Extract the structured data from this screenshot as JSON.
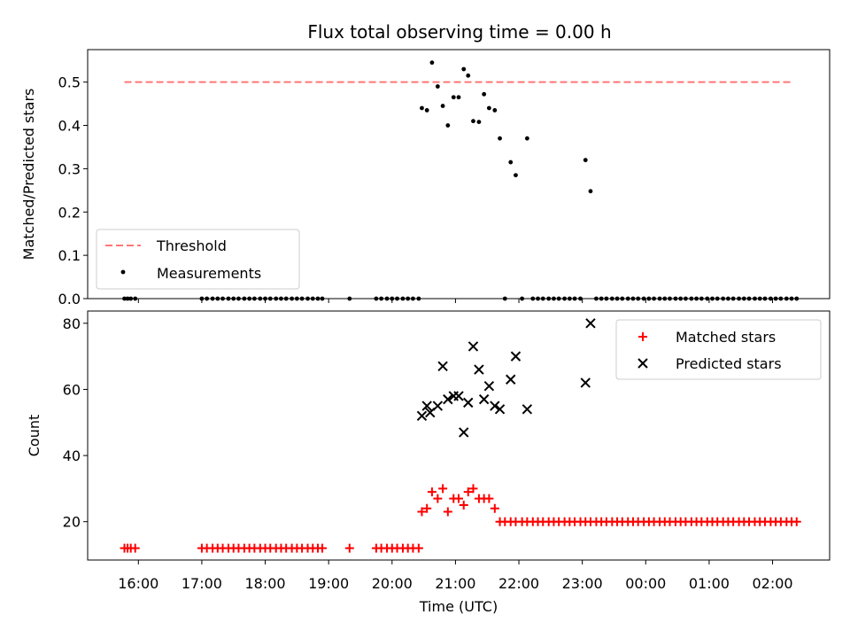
{
  "title": "Flux total observing time = 0.00 h",
  "chart_data": [
    {
      "type": "scatter",
      "ylabel": "Matched/Predicted stars",
      "ylim": [
        0,
        0.575
      ],
      "yticks": [
        0.0,
        0.1,
        0.2,
        0.3,
        0.4,
        0.5
      ],
      "grid": false,
      "legend_position": "lower-left",
      "threshold": {
        "name": "Threshold",
        "value": 0.5,
        "x_start": 15.78,
        "x_end": 26.33,
        "color": "#ff7777"
      },
      "series": [
        {
          "name": "Measurements",
          "color": "#000000",
          "x": [
            15.78,
            15.83,
            15.88,
            15.95,
            17.0,
            17.08,
            17.17,
            17.25,
            17.33,
            17.42,
            17.5,
            17.58,
            17.67,
            17.75,
            17.83,
            17.92,
            18.0,
            18.08,
            18.17,
            18.25,
            18.33,
            18.42,
            18.5,
            18.58,
            18.67,
            18.75,
            18.83,
            18.9,
            19.33,
            19.75,
            19.83,
            19.92,
            20.0,
            20.08,
            20.17,
            20.25,
            20.33,
            20.42,
            20.47,
            20.55,
            20.63,
            20.72,
            20.8,
            20.88,
            20.97,
            21.05,
            21.13,
            21.2,
            21.28,
            21.37,
            21.45,
            21.53,
            21.62,
            21.7,
            21.78,
            21.87,
            21.95,
            22.05,
            22.13,
            22.22,
            22.3,
            22.38,
            22.47,
            22.55,
            22.63,
            22.72,
            22.8,
            22.88,
            22.97,
            23.05,
            23.13,
            23.22,
            23.3,
            23.38,
            23.47,
            23.55,
            23.63,
            23.72,
            23.8,
            23.88,
            23.97,
            24.05,
            24.13,
            24.22,
            24.3,
            24.38,
            24.47,
            24.55,
            24.63,
            24.72,
            24.8,
            24.88,
            24.97,
            25.05,
            25.13,
            25.22,
            25.3,
            25.38,
            25.47,
            25.55,
            25.63,
            25.72,
            25.8,
            25.88,
            25.97,
            26.05,
            26.13,
            26.22,
            26.3,
            26.38
          ],
          "y": [
            0,
            0,
            0,
            0,
            0,
            0,
            0,
            0,
            0,
            0,
            0,
            0,
            0,
            0,
            0,
            0,
            0,
            0,
            0,
            0,
            0,
            0,
            0,
            0,
            0,
            0,
            0,
            0,
            0,
            0,
            0,
            0,
            0,
            0,
            0,
            0,
            0,
            0,
            0.44,
            0.435,
            0.545,
            0.49,
            0.445,
            0.4,
            0.465,
            0.465,
            0.53,
            0.515,
            0.41,
            0.408,
            0.472,
            0.44,
            0.435,
            0.37,
            0,
            0.315,
            0.285,
            0,
            0.37,
            0,
            0,
            0,
            0,
            0,
            0,
            0,
            0,
            0,
            0,
            0.32,
            0.248,
            0,
            0,
            0,
            0,
            0,
            0,
            0,
            0,
            0,
            0,
            0,
            0,
            0,
            0,
            0,
            0,
            0,
            0,
            0,
            0,
            0,
            0,
            0,
            0,
            0,
            0,
            0,
            0,
            0,
            0,
            0,
            0,
            0,
            0,
            0,
            0,
            0,
            0,
            0
          ]
        }
      ]
    },
    {
      "type": "scatter",
      "xlabel": "Time (UTC)",
      "ylabel": "Count",
      "xlim": [
        15.2,
        26.9
      ],
      "ylim": [
        8.4,
        83.7
      ],
      "yticks": [
        20,
        40,
        60,
        80
      ],
      "xticks": [
        16,
        17,
        18,
        19,
        20,
        21,
        22,
        23,
        24,
        25,
        26
      ],
      "xticklabels": [
        "16:00",
        "17:00",
        "18:00",
        "19:00",
        "20:00",
        "21:00",
        "22:00",
        "23:00",
        "00:00",
        "01:00",
        "02:00"
      ],
      "grid": false,
      "legend_position": "top-right",
      "series": [
        {
          "name": "Matched stars",
          "marker": "plus",
          "color": "#ff0000",
          "x": [
            15.78,
            15.83,
            15.88,
            15.95,
            17.0,
            17.08,
            17.17,
            17.25,
            17.33,
            17.42,
            17.5,
            17.58,
            17.67,
            17.75,
            17.83,
            17.92,
            18.0,
            18.08,
            18.17,
            18.25,
            18.33,
            18.42,
            18.5,
            18.58,
            18.67,
            18.75,
            18.83,
            18.9,
            19.33,
            19.75,
            19.83,
            19.92,
            20.0,
            20.08,
            20.17,
            20.25,
            20.33,
            20.42,
            20.47,
            20.55,
            20.63,
            20.72,
            20.8,
            20.88,
            20.97,
            21.05,
            21.13,
            21.2,
            21.28,
            21.37,
            21.45,
            21.53,
            21.62,
            21.7,
            21.78,
            21.87,
            21.95,
            22.05,
            22.13,
            22.22,
            22.3,
            22.38,
            22.47,
            22.55,
            22.63,
            22.72,
            22.8,
            22.88,
            22.97,
            23.05,
            23.13,
            23.22,
            23.3,
            23.38,
            23.47,
            23.55,
            23.63,
            23.72,
            23.8,
            23.88,
            23.97,
            24.05,
            24.13,
            24.22,
            24.3,
            24.38,
            24.47,
            24.55,
            24.63,
            24.72,
            24.8,
            24.88,
            24.97,
            25.05,
            25.13,
            25.22,
            25.3,
            25.38,
            25.47,
            25.55,
            25.63,
            25.72,
            25.8,
            25.88,
            25.97,
            26.05,
            26.13,
            26.22,
            26.3,
            26.38
          ],
          "y": [
            12,
            12,
            12,
            12,
            12,
            12,
            12,
            12,
            12,
            12,
            12,
            12,
            12,
            12,
            12,
            12,
            12,
            12,
            12,
            12,
            12,
            12,
            12,
            12,
            12,
            12,
            12,
            12,
            12,
            12,
            12,
            12,
            12,
            12,
            12,
            12,
            12,
            12,
            23,
            24,
            29,
            27,
            30,
            23,
            27,
            27,
            25,
            29,
            30,
            27,
            27,
            27,
            24,
            20,
            20,
            20,
            20,
            20,
            20,
            20,
            20,
            20,
            20,
            20,
            20,
            20,
            20,
            20,
            20,
            20,
            20,
            20,
            20,
            20,
            20,
            20,
            20,
            20,
            20,
            20,
            20,
            20,
            20,
            20,
            20,
            20,
            20,
            20,
            20,
            20,
            20,
            20,
            20,
            20,
            20,
            20,
            20,
            20,
            20,
            20,
            20,
            20,
            20,
            20,
            20,
            20,
            20,
            20,
            20,
            20
          ]
        },
        {
          "name": "Predicted stars",
          "marker": "x",
          "color": "#000000",
          "x": [
            20.47,
            20.55,
            20.6,
            20.72,
            20.8,
            20.88,
            20.97,
            21.05,
            21.13,
            21.2,
            21.28,
            21.37,
            21.45,
            21.53,
            21.62,
            21.7,
            21.87,
            21.95,
            22.13,
            23.05,
            23.13
          ],
          "y": [
            52,
            55,
            53,
            55,
            67,
            57,
            58,
            58,
            47,
            56,
            73,
            66,
            57,
            61,
            55,
            54,
            63,
            70,
            54,
            62,
            80
          ]
        }
      ]
    }
  ]
}
